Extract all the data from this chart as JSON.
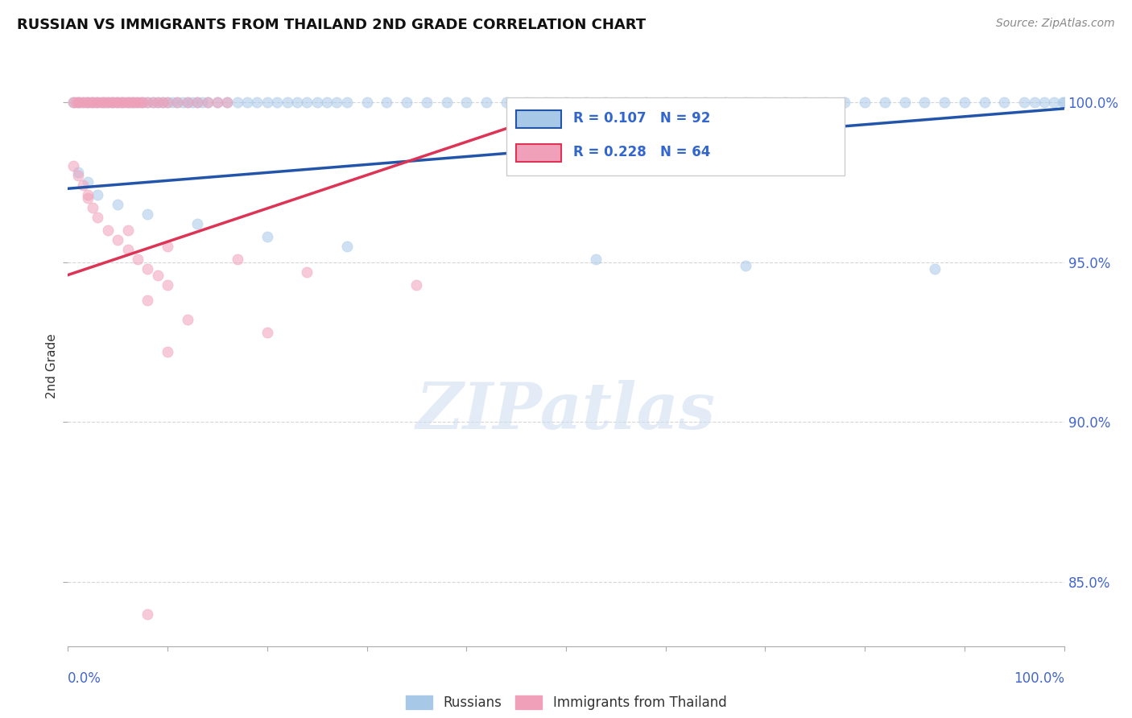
{
  "title": "RUSSIAN VS IMMIGRANTS FROM THAILAND 2ND GRADE CORRELATION CHART",
  "source": "Source: ZipAtlas.com",
  "ylabel": "2nd Grade",
  "watermark": "ZIPatlas",
  "xlim": [
    0.0,
    1.0
  ],
  "ylim": [
    0.83,
    1.005
  ],
  "yticks": [
    0.85,
    0.9,
    0.95,
    1.0
  ],
  "ytick_labels": [
    "85.0%",
    "90.0%",
    "95.0%",
    "100.0%"
  ],
  "xtick_labels_left": "0.0%",
  "xtick_labels_right": "100.0%",
  "legend_blue_r": "R = 0.107",
  "legend_blue_n": "N = 92",
  "legend_pink_r": "R = 0.228",
  "legend_pink_n": "N = 64",
  "blue_color": "#a8c8e8",
  "pink_color": "#f0a0b8",
  "blue_line_color": "#2255aa",
  "pink_line_color": "#dd3355",
  "dot_alpha": 0.55,
  "dot_size": 90,
  "blue_points_x": [
    0.005,
    0.01,
    0.015,
    0.02,
    0.025,
    0.03,
    0.035,
    0.04,
    0.045,
    0.05,
    0.055,
    0.06,
    0.065,
    0.07,
    0.075,
    0.08,
    0.085,
    0.09,
    0.095,
    0.1,
    0.105,
    0.11,
    0.115,
    0.12,
    0.125,
    0.13,
    0.135,
    0.14,
    0.15,
    0.16,
    0.17,
    0.18,
    0.19,
    0.2,
    0.21,
    0.22,
    0.23,
    0.24,
    0.25,
    0.26,
    0.27,
    0.28,
    0.3,
    0.32,
    0.34,
    0.36,
    0.38,
    0.4,
    0.42,
    0.44,
    0.46,
    0.48,
    0.5,
    0.52,
    0.54,
    0.56,
    0.58,
    0.6,
    0.62,
    0.64,
    0.66,
    0.68,
    0.7,
    0.72,
    0.74,
    0.76,
    0.78,
    0.8,
    0.82,
    0.84,
    0.86,
    0.88,
    0.9,
    0.92,
    0.94,
    0.96,
    0.97,
    0.98,
    0.99,
    1.0,
    0.01,
    0.02,
    0.03,
    0.05,
    0.08,
    0.13,
    0.2,
    0.28,
    0.53,
    0.68,
    0.87,
    0.999
  ],
  "blue_points_y": [
    1.0,
    1.0,
    1.0,
    1.0,
    1.0,
    1.0,
    1.0,
    1.0,
    1.0,
    1.0,
    1.0,
    1.0,
    1.0,
    1.0,
    1.0,
    1.0,
    1.0,
    1.0,
    1.0,
    1.0,
    1.0,
    1.0,
    1.0,
    1.0,
    1.0,
    1.0,
    1.0,
    1.0,
    1.0,
    1.0,
    1.0,
    1.0,
    1.0,
    1.0,
    1.0,
    1.0,
    1.0,
    1.0,
    1.0,
    1.0,
    1.0,
    1.0,
    1.0,
    1.0,
    1.0,
    1.0,
    1.0,
    1.0,
    1.0,
    1.0,
    1.0,
    1.0,
    1.0,
    1.0,
    1.0,
    1.0,
    1.0,
    1.0,
    1.0,
    1.0,
    1.0,
    1.0,
    1.0,
    1.0,
    1.0,
    1.0,
    1.0,
    1.0,
    1.0,
    1.0,
    1.0,
    1.0,
    1.0,
    1.0,
    1.0,
    1.0,
    1.0,
    1.0,
    1.0,
    1.0,
    0.978,
    0.975,
    0.971,
    0.968,
    0.965,
    0.962,
    0.958,
    0.955,
    0.951,
    0.949,
    0.948,
    1.0
  ],
  "pink_points_x": [
    0.005,
    0.008,
    0.01,
    0.012,
    0.015,
    0.018,
    0.02,
    0.023,
    0.025,
    0.028,
    0.03,
    0.033,
    0.035,
    0.038,
    0.04,
    0.043,
    0.045,
    0.048,
    0.05,
    0.053,
    0.055,
    0.058,
    0.06,
    0.063,
    0.065,
    0.068,
    0.07,
    0.073,
    0.075,
    0.08,
    0.085,
    0.09,
    0.095,
    0.1,
    0.11,
    0.12,
    0.13,
    0.14,
    0.15,
    0.16,
    0.005,
    0.01,
    0.015,
    0.02,
    0.025,
    0.03,
    0.04,
    0.05,
    0.06,
    0.07,
    0.08,
    0.09,
    0.1,
    0.02,
    0.06,
    0.1,
    0.17,
    0.24,
    0.35,
    0.08,
    0.12,
    0.2,
    0.1,
    0.08
  ],
  "pink_points_y": [
    1.0,
    1.0,
    1.0,
    1.0,
    1.0,
    1.0,
    1.0,
    1.0,
    1.0,
    1.0,
    1.0,
    1.0,
    1.0,
    1.0,
    1.0,
    1.0,
    1.0,
    1.0,
    1.0,
    1.0,
    1.0,
    1.0,
    1.0,
    1.0,
    1.0,
    1.0,
    1.0,
    1.0,
    1.0,
    1.0,
    1.0,
    1.0,
    1.0,
    1.0,
    1.0,
    1.0,
    1.0,
    1.0,
    1.0,
    1.0,
    0.98,
    0.977,
    0.974,
    0.97,
    0.967,
    0.964,
    0.96,
    0.957,
    0.954,
    0.951,
    0.948,
    0.946,
    0.943,
    0.971,
    0.96,
    0.955,
    0.951,
    0.947,
    0.943,
    0.938,
    0.932,
    0.928,
    0.922,
    0.84
  ],
  "blue_trend_x": [
    0.0,
    1.0
  ],
  "blue_trend_y": [
    0.973,
    0.998
  ],
  "pink_trend_x": [
    0.0,
    0.5
  ],
  "pink_trend_y": [
    0.946,
    0.998
  ]
}
